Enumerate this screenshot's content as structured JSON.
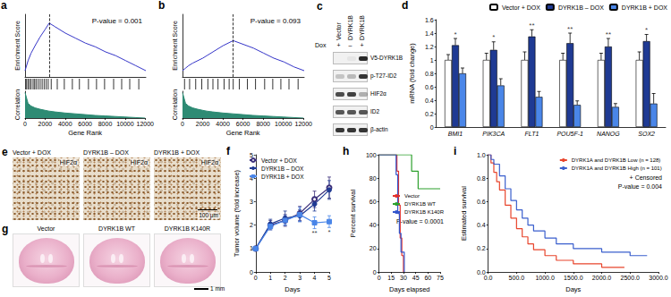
{
  "chart_data": [
    {
      "type": "gsea",
      "title": "a",
      "xlabel": "Gene Rank",
      "ylabel": "Enrichment Score",
      "y2label": "Correlation",
      "xlim": [
        0,
        12000
      ],
      "xticks": [
        0,
        2000,
        4000,
        6000,
        8000,
        10000,
        12000
      ],
      "ylim": [
        -0.05,
        0.45
      ],
      "y2lim": [
        0,
        1
      ],
      "tick_labels": "x",
      "annotations": [
        "P-value = 0.001"
      ],
      "series": [
        {
          "type": "line",
          "color": "#3535c8",
          "x": [
            0,
            300,
            600,
            1000,
            1500,
            2000,
            2400,
            3000,
            4000,
            5000,
            6000,
            7000,
            8000,
            9000,
            10000,
            11000,
            12000
          ],
          "values": [
            0,
            0.08,
            0.14,
            0.2,
            0.27,
            0.33,
            0.38,
            0.35,
            0.3,
            0.26,
            0.22,
            0.19,
            0.15,
            0.12,
            0.08,
            0.04,
            0
          ]
        },
        {
          "type": "hits",
          "color": "#000000",
          "x": [
            50,
            150,
            300,
            450,
            600,
            800,
            950,
            1100,
            1300,
            1500,
            1700,
            1900,
            2100,
            2300,
            2600,
            3200,
            3900,
            4700,
            5400,
            6300,
            7100,
            7900,
            8800,
            9600,
            10400,
            11300
          ]
        },
        {
          "type": "area",
          "axis": "y2",
          "color": "#2e8b74",
          "x": [
            0,
            300,
            600,
            1000,
            1500,
            2000,
            2400,
            3000,
            4000,
            5000,
            6000,
            7000,
            8000,
            9000,
            10000,
            11000,
            12000
          ],
          "values": [
            0.95,
            0.55,
            0.45,
            0.38,
            0.33,
            0.29,
            0.26,
            0.23,
            0.19,
            0.16,
            0.13,
            0.1,
            0.08,
            0.06,
            0.04,
            0.02,
            0
          ]
        }
      ]
    },
    {
      "type": "gsea",
      "title": "b",
      "xlabel": "Gene Rank",
      "ylabel": "Enrichment Score",
      "y2label": "Correlation",
      "xlim": [
        0,
        12000
      ],
      "xticks": [
        0,
        2000,
        4000,
        6000,
        8000,
        10000,
        12000
      ],
      "ylim": [
        -0.05,
        0.45
      ],
      "y2lim": [
        0,
        1
      ],
      "tick_labels": "x",
      "annotations": [
        "P-value = 0.093"
      ],
      "series": [
        {
          "type": "line",
          "color": "#3535c8",
          "x": [
            0,
            300,
            600,
            1000,
            1500,
            2000,
            2400,
            3000,
            4000,
            5000,
            6000,
            7000,
            8000,
            9000,
            10000,
            11000,
            12000
          ],
          "values": [
            0,
            0.02,
            0.04,
            0.06,
            0.08,
            0.1,
            0.12,
            0.15,
            0.2,
            0.24,
            0.21,
            0.18,
            0.14,
            0.1,
            0.07,
            0.03,
            0
          ]
        },
        {
          "type": "hits",
          "color": "#000000",
          "x": [
            200,
            700,
            1300,
            1900,
            2500,
            3000,
            3500,
            4100,
            4600,
            5000,
            5600,
            6400,
            7200,
            8100,
            8900,
            9700,
            10500,
            11400
          ]
        },
        {
          "type": "area",
          "axis": "y2",
          "color": "#2e8b74",
          "x": [
            0,
            300,
            600,
            1000,
            1500,
            2000,
            2400,
            3000,
            4000,
            5000,
            6000,
            7000,
            8000,
            9000,
            10000,
            11000,
            12000
          ],
          "values": [
            0.95,
            0.55,
            0.45,
            0.38,
            0.33,
            0.29,
            0.26,
            0.23,
            0.19,
            0.16,
            0.13,
            0.1,
            0.08,
            0.06,
            0.04,
            0.02,
            0
          ]
        }
      ]
    },
    {
      "type": "bar",
      "title": "d",
      "ylabel": "mRNA (fold change)",
      "categories": [
        "BMI1",
        "PIK3CA",
        "FLT1",
        "POU5F-1",
        "NANOG",
        "SOX2"
      ],
      "ylim": [
        0,
        1.6
      ],
      "yticks": [
        0,
        0.2,
        0.4,
        0.6,
        0.8,
        1,
        1.2,
        1.4,
        1.6
      ],
      "legend": "upper right",
      "series": [
        {
          "name": "Vector + DOX",
          "color": "#ffffff",
          "values": [
            1,
            1,
            1,
            1,
            1,
            1
          ],
          "errors": [
            0.08,
            0.1,
            0.12,
            0.1,
            0.1,
            0.12
          ]
        },
        {
          "name": "DYRK1B – DOX",
          "color": "#1f3a93",
          "values": [
            1.22,
            1.15,
            1.35,
            1.25,
            1.2,
            1.28
          ],
          "errors": [
            0.1,
            0.12,
            0.1,
            0.15,
            0.12,
            0.1
          ]
        },
        {
          "name": "DYRK1B + DOX",
          "color": "#4a86e8",
          "values": [
            0.8,
            0.62,
            0.45,
            0.33,
            0.3,
            0.35
          ],
          "errors": [
            0.08,
            0.1,
            0.08,
            0.06,
            0.05,
            0.15
          ]
        }
      ],
      "annotations": [
        {
          "category": "BMI1",
          "text": "*"
        },
        {
          "category": "PIK3CA",
          "text": "*"
        },
        {
          "category": "FLT1",
          "text": "**"
        },
        {
          "category": "POU5F-1",
          "text": "**"
        },
        {
          "category": "NANOG",
          "text": "**"
        },
        {
          "category": "SOX2",
          "text": "*"
        }
      ]
    },
    {
      "type": "line",
      "title": "f",
      "xlabel": "Days",
      "ylabel": "Tumor volume (fold increase)",
      "x": [
        0,
        1,
        2,
        3,
        4,
        5
      ],
      "xlim": [
        0,
        5
      ],
      "xticks": [
        0,
        1,
        2,
        3,
        4,
        5
      ],
      "ylim": [
        0,
        5
      ],
      "yticks": [
        0,
        1,
        2,
        3,
        4,
        5
      ],
      "legend": "upper left",
      "series": [
        {
          "name": "Vector + DOX",
          "color": "#3b2f7a",
          "marker": "hollow",
          "values": [
            1,
            2,
            2.2,
            2.5,
            3.1,
            3.6
          ],
          "errors": [
            0,
            0.2,
            0.25,
            0.3,
            0.35,
            0.45
          ]
        },
        {
          "name": "DYRK1B – DOX",
          "color": "#1f3a93",
          "marker": "circle",
          "values": [
            1,
            2.05,
            2.3,
            2.4,
            2.9,
            3.5
          ],
          "errors": [
            0,
            0.2,
            0.3,
            0.25,
            0.3,
            0.4
          ]
        },
        {
          "name": "DYRK1B + DOX",
          "color": "#4a86e8",
          "marker": "square",
          "values": [
            1,
            1.95,
            2.2,
            2.45,
            2.1,
            2.15
          ],
          "errors": [
            0,
            0.15,
            0.2,
            0.3,
            0.25,
            0.25
          ]
        }
      ],
      "annotations": [
        {
          "x": 4,
          "text": "**",
          "series": "DYRK1B + DOX"
        },
        {
          "x": 5,
          "text": "*",
          "series": "DYRK1B + DOX"
        }
      ]
    },
    {
      "type": "step",
      "title": "h",
      "xlabel": "Days elapsed",
      "ylabel": "Percent survival",
      "xlim": [
        0,
        75
      ],
      "xticks": [
        0,
        15,
        30,
        45,
        60,
        75
      ],
      "ylim": [
        0,
        100
      ],
      "yticks": [
        0,
        20,
        40,
        60,
        80,
        100
      ],
      "legend": "center right",
      "annotations": [
        "P-value = 0.0001"
      ],
      "series": [
        {
          "name": "Vector",
          "color": "#e4312b",
          "x": [
            0,
            22,
            24,
            26,
            28,
            30
          ],
          "values": [
            100,
            86,
            57,
            29,
            14,
            0
          ]
        },
        {
          "name": "DYRK1B WT",
          "color": "#2ca02c",
          "x": [
            0,
            40,
            48,
            75
          ],
          "values": [
            100,
            86,
            71,
            71
          ]
        },
        {
          "name": "DYRK1B K140R",
          "color": "#3355cc",
          "x": [
            0,
            21,
            23,
            25,
            27,
            31
          ],
          "values": [
            100,
            83,
            50,
            33,
            17,
            0
          ]
        }
      ]
    },
    {
      "type": "step",
      "title": "i",
      "xlabel": "Days",
      "ylabel": "Estimated survival",
      "xlim": [
        0,
        3000
      ],
      "xticks": [
        {
          "value": 0,
          "label": "0.0"
        },
        {
          "value": 500,
          "label": "500.0"
        },
        {
          "value": 1000,
          "label": "1000.0"
        },
        {
          "value": 1500,
          "label": "1500.0"
        },
        {
          "value": 2000,
          "label": "2000.0"
        },
        {
          "value": 2500,
          "label": "2500.0"
        },
        {
          "value": 3000,
          "label": "3000.0"
        }
      ],
      "ylim": [
        0,
        1
      ],
      "yticks": [
        {
          "value": 0,
          "label": "0.0"
        },
        0.2,
        0.4,
        0.6,
        0.8,
        {
          "value": 1,
          "label": "1.0"
        }
      ],
      "legend": "upper right",
      "annotations": [
        "+ Censored",
        "P-value = 0.004"
      ],
      "series": [
        {
          "name": "DYRK1A and DYRK1B Low (n = 128)",
          "color": "#e8452c",
          "x": [
            0,
            50,
            100,
            150,
            200,
            300,
            400,
            500,
            600,
            700,
            800,
            1000,
            1200,
            1500,
            2000,
            2400
          ],
          "values": [
            1,
            0.93,
            0.85,
            0.77,
            0.7,
            0.57,
            0.46,
            0.37,
            0.3,
            0.24,
            0.19,
            0.14,
            0.1,
            0.07,
            0.04,
            0.04
          ]
        },
        {
          "name": "DYRK1A and DYRK1B High (n = 101)",
          "color": "#3a5fcd",
          "x": [
            0,
            50,
            100,
            200,
            300,
            400,
            500,
            600,
            700,
            800,
            1000,
            1200,
            1500,
            2000,
            2500,
            2800
          ],
          "values": [
            1,
            0.96,
            0.92,
            0.82,
            0.71,
            0.61,
            0.53,
            0.46,
            0.4,
            0.35,
            0.29,
            0.24,
            0.2,
            0.17,
            0.14,
            0.14
          ]
        }
      ]
    }
  ],
  "blot": {
    "panel": "c",
    "lanes": [
      "Vector",
      "DYRK1B",
      "DYRK1B"
    ],
    "treatment_label": "Dox",
    "treatment": [
      "+",
      "–",
      "+"
    ],
    "rows": [
      {
        "label": "V5-DYRK1B",
        "bands": [
          0,
          0.05,
          0.9
        ]
      },
      {
        "label": "p-T27-ID2",
        "bands": [
          0.2,
          0.25,
          0.85
        ]
      },
      {
        "label": "HIF2α",
        "bands": [
          0.75,
          0.8,
          0.3
        ]
      },
      {
        "label": "ID2",
        "bands": [
          0.7,
          0.7,
          0.7
        ]
      },
      {
        "label": "β-actin",
        "bands": [
          0.85,
          0.85,
          0.85
        ]
      }
    ]
  },
  "ihc": {
    "panel": "e",
    "images": [
      "Vector + DOX",
      "DYRK1B – DOX",
      "DYRK1B + DOX"
    ],
    "stain": "HIF2α",
    "scale_bar": "100 μm"
  },
  "brain": {
    "panel": "g",
    "images": [
      "Vector",
      "DYRK1B WT",
      "DYRK1B K140R"
    ],
    "scale_bar": "1 mm"
  }
}
